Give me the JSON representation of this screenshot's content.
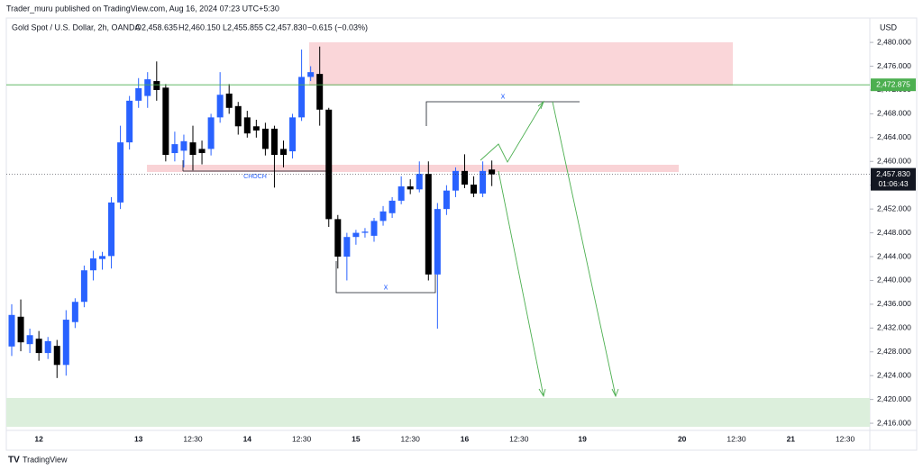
{
  "header": {
    "publisher": "Trader_muru published on TradingView.com, Aug 16, 2024 07:23 UTC+5:30",
    "symbol": "Gold Spot / U.S. Dollar, 2h, OANDA",
    "ohlc": [
      "O2,458.635",
      "H2,460.150",
      "L2,455.855",
      "C2,457.830",
      "−0.615 (−0.03%)"
    ],
    "currency": "USD",
    "footer": "TradingView"
  },
  "chart_data": {
    "type": "candlestick",
    "up_color": "#2962ff",
    "down_color": "#000000",
    "ylim": [
      2414.8,
      2484.1
    ],
    "yticks": [
      {
        "value": 2416,
        "label": "2,416.000"
      },
      {
        "value": 2420,
        "label": "2,420.000"
      },
      {
        "value": 2424,
        "label": "2,424.000"
      },
      {
        "value": 2428,
        "label": "2,428.000"
      },
      {
        "value": 2432,
        "label": "2,432.000"
      },
      {
        "value": 2436,
        "label": "2,436.000"
      },
      {
        "value": 2440,
        "label": "2,440.000"
      },
      {
        "value": 2444,
        "label": "2,444.000"
      },
      {
        "value": 2448,
        "label": "2,448.000"
      },
      {
        "value": 2452,
        "label": "2,452.000"
      },
      {
        "value": 2456,
        "label": "2,456.000"
      },
      {
        "value": 2460,
        "label": "2,460.000"
      },
      {
        "value": 2464,
        "label": "2,464.000"
      },
      {
        "value": 2468,
        "label": "2,468.000"
      },
      {
        "value": 2472,
        "label": "2,472.000"
      },
      {
        "value": 2476,
        "label": "2,476.000"
      },
      {
        "value": 2480,
        "label": "2,480.000"
      }
    ],
    "grid": false,
    "level_line": {
      "value": 2472.875,
      "label": "2,472.875",
      "color": "#4caf50"
    },
    "last_price": {
      "value": 2457.83,
      "label": "2,457.830",
      "countdown": "01:06:43"
    },
    "annotations": [
      "CHOCH",
      "x",
      "x"
    ],
    "categories": [
      null,
      null,
      null,
      "12",
      null,
      null,
      null,
      null,
      null,
      null,
      null,
      null,
      null,
      null,
      "13",
      null,
      null,
      null,
      null,
      null,
      "12:30",
      null,
      null,
      null,
      null,
      null,
      "14",
      null,
      null,
      null,
      null,
      null,
      "12:30",
      null,
      null,
      null,
      null,
      null,
      "15",
      null,
      null,
      null,
      null,
      null,
      "12:30",
      null,
      null,
      null,
      null,
      null,
      "16",
      null,
      null,
      null,
      null,
      null,
      "12:30",
      null,
      null,
      null,
      null,
      null,
      null,
      "19",
      null,
      null,
      null,
      null,
      null,
      null,
      null,
      null,
      null,
      null,
      "20",
      null,
      null,
      null,
      null,
      null,
      "12:30",
      null,
      null,
      null,
      null,
      null,
      "21",
      null,
      null,
      null,
      null,
      null,
      "12:30",
      null,
      null
    ],
    "open": [
      2428.9,
      2433.9,
      2429.3,
      2430.2,
      2427.8,
      2429.0,
      2425.8,
      2433.0,
      2436.4,
      2441.7,
      2443.6,
      2444.1,
      2453.1,
      2463.2,
      2470.2,
      2471.0,
      2473.5,
      2472.4,
      2461.4,
      2461.8,
      2463.2,
      2462.1,
      2462.1,
      2467.4,
      2471.4,
      2469.3,
      2467.4,
      2465.9,
      2465.5,
      2465.5,
      2462.1,
      2461.7,
      2467.4,
      2474.2,
      2474.7,
      2468.7,
      2450.3,
      2444.0,
      2447.3,
      2448.0,
      2447.5,
      2450.0,
      2451.3,
      2453.4,
      2455.8,
      2455.3,
      2457.9,
      2441.0,
      2452.0,
      2455.1,
      2458.4,
      2456.1,
      2454.6,
      2458.635,
      null,
      null,
      null,
      null,
      null,
      null,
      null,
      null,
      null,
      null,
      null,
      null,
      null,
      null,
      null,
      null,
      null,
      null,
      null,
      null,
      null,
      null,
      null,
      null,
      null,
      null,
      null,
      null,
      null,
      null,
      null,
      null,
      null,
      null,
      null,
      null,
      null,
      null,
      null,
      null,
      null
    ],
    "high": [
      2436.0,
      2436.8,
      2431.9,
      2431.5,
      2430.5,
      2430.0,
      2435.0,
      2437.0,
      2442.5,
      2445.0,
      2444.8,
      2454.0,
      2466.0,
      2471.0,
      2474.0,
      2475.0,
      2476.8,
      2473.0,
      2465.0,
      2464.5,
      2466.0,
      2463.5,
      2468.0,
      2475.0,
      2473.0,
      2470.0,
      2468.5,
      2467.0,
      2466.5,
      2466.0,
      2463.5,
      2468.0,
      2478.8,
      2476.0,
      2479.3,
      2469.0,
      2451.0,
      2448.0,
      2448.5,
      2448.8,
      2450.5,
      2452.5,
      2454.0,
      2457.5,
      2457.0,
      2460.0,
      2460.0,
      2453.0,
      2456.0,
      2459.0,
      2461.2,
      2457.5,
      2460.0,
      2460.15,
      null,
      null,
      null,
      null,
      null,
      null,
      null,
      null,
      null,
      null,
      null,
      null,
      null,
      null,
      null,
      null,
      null,
      null,
      null,
      null,
      null,
      null,
      null,
      null,
      null,
      null,
      null,
      null,
      null,
      null,
      null,
      null,
      null,
      null,
      null,
      null,
      null,
      null,
      null,
      null,
      null
    ],
    "low": [
      2427.3,
      2428.1,
      2427.8,
      2426.5,
      2426.8,
      2423.6,
      2424.0,
      2432.0,
      2435.5,
      2440.0,
      2441.8,
      2442.0,
      2452.0,
      2462.0,
      2469.0,
      2469.0,
      2470.2,
      2460.0,
      2460.0,
      2459.0,
      2458.5,
      2459.5,
      2461.0,
      2466.5,
      2468.0,
      2464.5,
      2464.0,
      2464.0,
      2461.0,
      2455.6,
      2459.0,
      2460.5,
      2466.8,
      2473.5,
      2466.0,
      2449.0,
      2442.0,
      2440.0,
      2446.0,
      2447.2,
      2446.5,
      2449.2,
      2450.5,
      2452.8,
      2454.5,
      2454.8,
      2440.0,
      2431.9,
      2451.0,
      2454.0,
      2455.5,
      2454.0,
      2454.0,
      2455.855,
      null,
      null,
      null,
      null,
      null,
      null,
      null,
      null,
      null,
      null,
      null,
      null,
      null,
      null,
      null,
      null,
      null,
      null,
      null,
      null,
      null,
      null,
      null,
      null,
      null,
      null,
      null,
      null,
      null,
      null,
      null,
      null,
      null,
      null,
      null,
      null,
      null,
      null,
      null,
      null,
      null
    ],
    "close": [
      2434.2,
      2429.6,
      2430.8,
      2427.8,
      2429.8,
      2425.8,
      2433.4,
      2436.4,
      2441.7,
      2443.7,
      2444.1,
      2453.1,
      2463.2,
      2470.2,
      2472.3,
      2473.8,
      2472.0,
      2461.1,
      2462.9,
      2463.4,
      2461.1,
      2461.4,
      2467.4,
      2471.2,
      2469.0,
      2465.9,
      2464.7,
      2465.2,
      2462.1,
      2461.1,
      2461.1,
      2467.4,
      2474.2,
      2475.0,
      2468.7,
      2450.3,
      2444.0,
      2447.3,
      2448.0,
      2448.2,
      2450.0,
      2451.6,
      2453.4,
      2455.8,
      2455.3,
      2457.9,
      2441.0,
      2452.0,
      2455.1,
      2458.4,
      2456.1,
      2454.6,
      2458.4,
      2457.83,
      null,
      null,
      null,
      null,
      null,
      null,
      null,
      null,
      null,
      null,
      null,
      null,
      null,
      null,
      null,
      null,
      null,
      null,
      null,
      null,
      null,
      null,
      null,
      null,
      null,
      null,
      null,
      null,
      null,
      null,
      null,
      null,
      null,
      null,
      null,
      null,
      null,
      null,
      null,
      null,
      null
    ]
  }
}
